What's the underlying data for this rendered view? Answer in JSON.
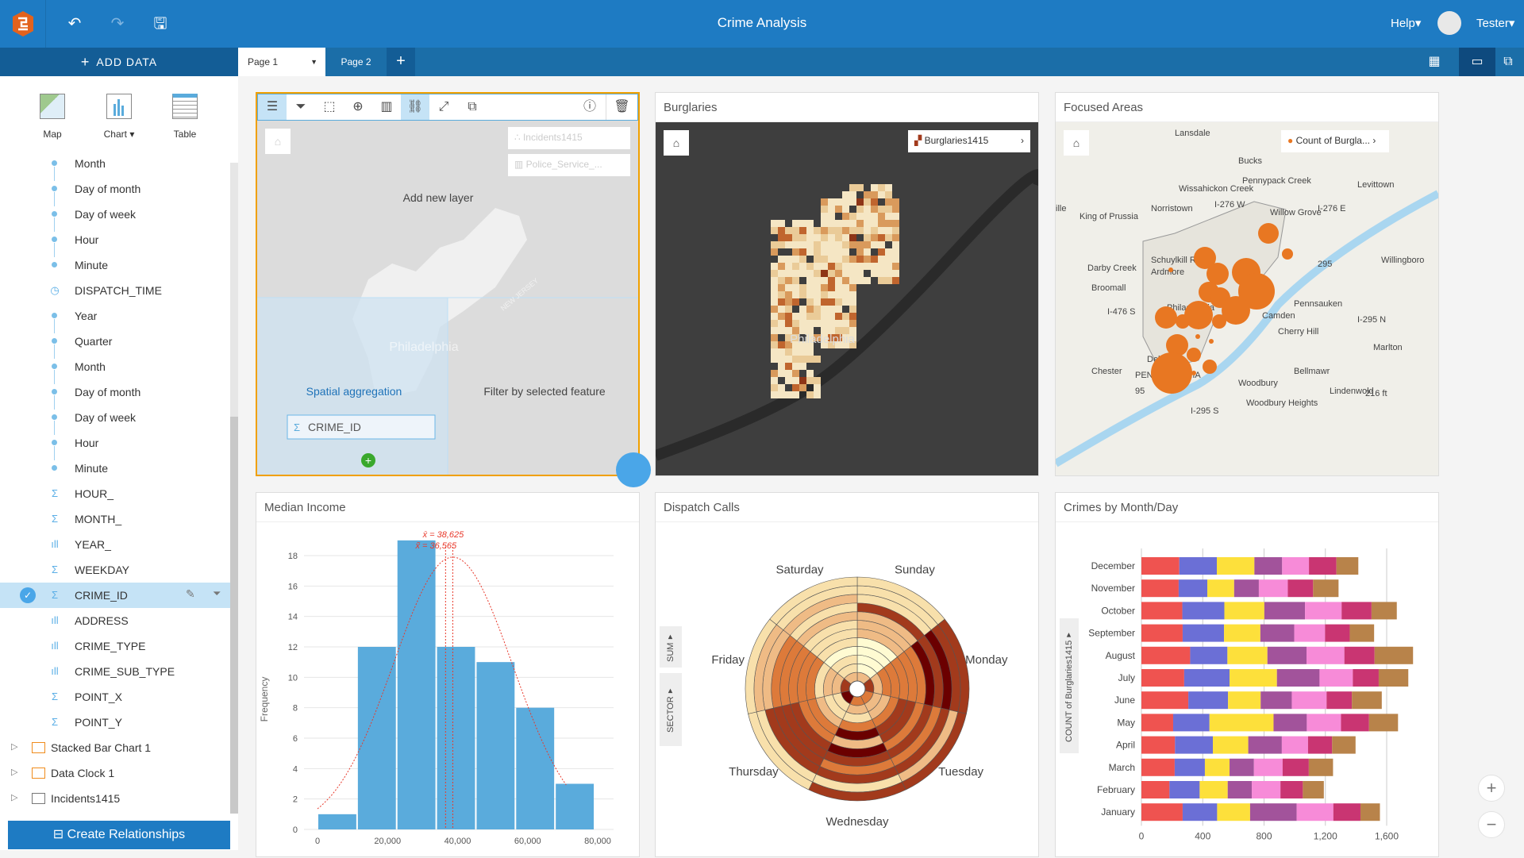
{
  "app": {
    "title": "Crime Analysis",
    "help": "Help▾",
    "user": "Tester▾",
    "add_data": "ADD DATA",
    "add_icon": "plus-icon"
  },
  "tabs": [
    {
      "label": "Page 1",
      "active": true
    },
    {
      "label": "Page 2",
      "active": false
    }
  ],
  "viz_buttons": [
    {
      "label": "Map"
    },
    {
      "label": "Chart ▾"
    },
    {
      "label": "Table"
    }
  ],
  "fields": [
    {
      "label": "Month",
      "type": "dot"
    },
    {
      "label": "Day of month",
      "type": "dot"
    },
    {
      "label": "Day of week",
      "type": "dot"
    },
    {
      "label": "Hour",
      "type": "dot"
    },
    {
      "label": "Minute",
      "type": "dot"
    },
    {
      "label": "DISPATCH_TIME",
      "type": "clock"
    },
    {
      "label": "Year",
      "type": "dot"
    },
    {
      "label": "Quarter",
      "type": "dot"
    },
    {
      "label": "Month",
      "type": "dot"
    },
    {
      "label": "Day of month",
      "type": "dot"
    },
    {
      "label": "Day of week",
      "type": "dot"
    },
    {
      "label": "Hour",
      "type": "dot"
    },
    {
      "label": "Minute",
      "type": "dot"
    },
    {
      "label": "HOUR_",
      "type": "sum"
    },
    {
      "label": "MONTH_",
      "type": "sum"
    },
    {
      "label": "YEAR_",
      "type": "string"
    },
    {
      "label": "WEEKDAY",
      "type": "sum"
    },
    {
      "label": "CRIME_ID",
      "type": "sum",
      "selected": true
    },
    {
      "label": "ADDRESS",
      "type": "string"
    },
    {
      "label": "CRIME_TYPE",
      "type": "string"
    },
    {
      "label": "CRIME_SUB_TYPE",
      "type": "string"
    },
    {
      "label": "POINT_X",
      "type": "sum"
    },
    {
      "label": "POINT_Y",
      "type": "sum"
    }
  ],
  "datasets": [
    {
      "label": "Stacked Bar Chart 1",
      "icon": "result-dataset-icon"
    },
    {
      "label": "Data Clock 1",
      "icon": "result-dataset-icon"
    },
    {
      "label": "Incidents1415",
      "icon": "table-icon"
    }
  ],
  "create_relationships": "Create Relationships",
  "map_edit": {
    "layers": [
      "Incidents1415",
      "Police_Service_..."
    ],
    "drop_add": "Add new layer",
    "drop_spatial": "Spatial aggregation",
    "drop_filter": "Filter by selected feature",
    "drag_field": "CRIME_ID",
    "city_label": "Philadelphia",
    "state_label": "NEW JERSEY"
  },
  "burglaries": {
    "title": "Burglaries",
    "legend": "Burglaries1415",
    "city_label": "Philadelphia"
  },
  "focused": {
    "title": "Focused Areas",
    "legend": "Count of Burgla...",
    "places": [
      "Lansdale",
      "Bucks",
      "Levittown",
      "Willow Grove",
      "Norristown",
      "King of Prussia",
      "Ardmore",
      "Broomall",
      "Philadelphia",
      "Pennsauken",
      "Camden",
      "Cherry Hill",
      "Willingboro",
      "Marlton",
      "Chester",
      "Bellmawr",
      "Woodbury",
      "Woodbury Heights",
      "Lindenwold",
      "216 ft",
      "PENNSYLVANIA",
      "Delaware",
      "Schuylkill River",
      "Wissahickon Creek",
      "Pennypack Creek",
      "Darby Creek",
      "I-276 W",
      "I-276 E",
      "I-476 S",
      "I-295 N",
      "I-295 S",
      "95",
      "295",
      "ille"
    ]
  },
  "chart_data": [
    {
      "type": "bar",
      "title": "Median Income",
      "ylabel": "Frequency",
      "xlabel": "",
      "bin_edges": [
        0,
        11300,
        22600,
        33900,
        45200,
        56500,
        67800,
        79100
      ],
      "values": [
        1,
        12,
        19,
        12,
        11,
        8,
        3
      ],
      "xticks": [
        "0",
        "20,000",
        "40,000",
        "60,000",
        "80,000"
      ],
      "yticks": [
        "0",
        "2",
        "4",
        "6",
        "8",
        "10",
        "12",
        "14",
        "16",
        "18"
      ],
      "xlim": [
        0,
        80000
      ],
      "ylim": [
        0,
        19
      ],
      "mean_label": "x̄ = 38,625",
      "median_label": "x̃ = 36,565",
      "mean": 38625,
      "median": 36565,
      "color": "#5aabdc",
      "curve_color": "#e8392b"
    },
    {
      "type": "heatmap",
      "title": "Dispatch Calls",
      "sectors": [
        "Sunday",
        "Monday",
        "Tuesday",
        "Wednesday",
        "Thursday",
        "Friday",
        "Saturday"
      ],
      "levels": [
        [
          2,
          0,
          0,
          0,
          0,
          2,
          2,
          2,
          4,
          1,
          1,
          1
        ],
        [
          4,
          2,
          3,
          3,
          3,
          3,
          3,
          5,
          4,
          5,
          4,
          4
        ],
        [
          3,
          2,
          2,
          3,
          4,
          4,
          3,
          4,
          3,
          4,
          2,
          4
        ],
        [
          3,
          2,
          1,
          3,
          5,
          2,
          5,
          4,
          3,
          4,
          1,
          4
        ],
        [
          5,
          1,
          1,
          2,
          3,
          3,
          4,
          4,
          4,
          4,
          1,
          1
        ],
        [
          4,
          2,
          2,
          1,
          3,
          3,
          3,
          3,
          3,
          2,
          2,
          1
        ],
        [
          2,
          1,
          1,
          0,
          1,
          1,
          1,
          2,
          1,
          2,
          1,
          1
        ]
      ],
      "palette": [
        "#fffbd2",
        "#f8e0ab",
        "#efbb85",
        "#dd7a3a",
        "#a23a1c",
        "#6b0000"
      ],
      "ring_axis": "SECTOR▾",
      "value_axis": "SUM▾"
    },
    {
      "type": "bar",
      "orientation": "horizontal",
      "stacked": true,
      "title": "Crimes by Month/Day",
      "ylabel": "COUNT of Burglaries1415▾",
      "categories": [
        "December",
        "November",
        "October",
        "September",
        "August",
        "July",
        "June",
        "May",
        "April",
        "March",
        "February",
        "January"
      ],
      "series_colors": [
        "#ef5350",
        "#6b6fd6",
        "#fde03b",
        "#a2539b",
        "#f78bd8",
        "#c93572",
        "#b8834a"
      ],
      "values": [
        [
          247,
          245,
          245,
          181,
          175,
          179,
          143
        ],
        [
          243,
          187,
          175,
          161,
          189,
          165,
          166
        ],
        [
          267,
          274,
          261,
          265,
          239,
          195,
          165
        ],
        [
          269,
          270,
          237,
          221,
          201,
          161,
          159
        ],
        [
          318,
          243,
          261,
          255,
          247,
          197,
          251
        ],
        [
          279,
          296,
          309,
          278,
          217,
          169,
          193
        ],
        [
          306,
          259,
          213,
          203,
          227,
          165,
          195
        ],
        [
          207,
          237,
          418,
          217,
          223,
          183,
          189
        ],
        [
          219,
          247,
          231,
          219,
          171,
          157,
          153
        ],
        [
          217,
          197,
          161,
          159,
          187,
          171,
          158
        ],
        [
          183,
          197,
          183,
          157,
          187,
          146,
          137
        ],
        [
          269,
          225,
          215,
          304,
          239,
          177,
          127
        ]
      ],
      "xticks": [
        "0",
        "400",
        "800",
        "1,200",
        "1,600"
      ],
      "xlim": [
        0,
        1800
      ],
      "grid": true
    }
  ]
}
